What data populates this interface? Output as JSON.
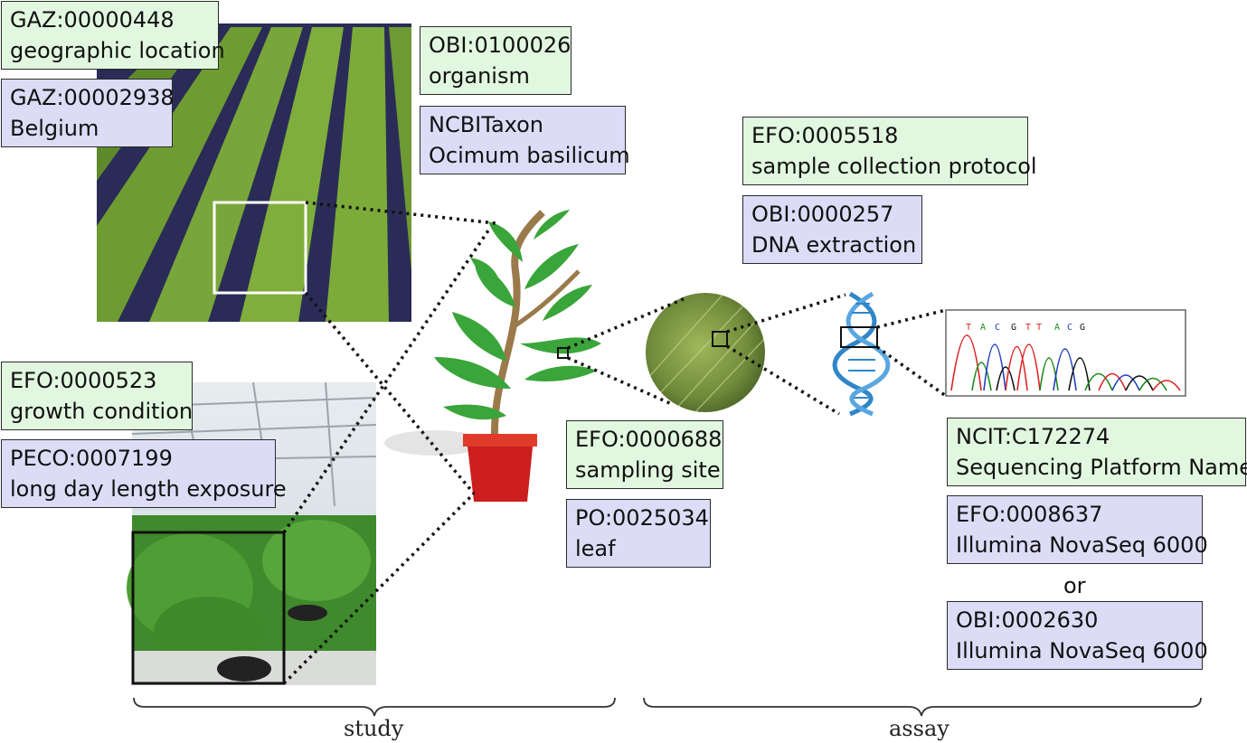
{
  "annotations": {
    "geo_location": {
      "id": "GAZ:00000448",
      "label": "geographic location"
    },
    "geo_value": {
      "id": "GAZ:00002938",
      "label": "Belgium"
    },
    "organism": {
      "id": "OBI:0100026",
      "label": "organism"
    },
    "organism_value": {
      "id": "NCBITaxon",
      "label": "Ocimum basilicum"
    },
    "growth": {
      "id": "EFO:0000523",
      "label": "growth condition"
    },
    "growth_value": {
      "id": "PECO:0007199",
      "label": "long day length exposure"
    },
    "sampling": {
      "id": "EFO:0000688",
      "label": "sampling site"
    },
    "sampling_value": {
      "id": "PO:0025034",
      "label": "leaf"
    },
    "protocol": {
      "id": "EFO:0005518",
      "label": "sample collection protocol"
    },
    "protocol_value": {
      "id": "OBI:0000257",
      "label": "DNA extraction"
    },
    "platform": {
      "id": "NCIT:C172274",
      "label": "Sequencing Platform Name"
    },
    "platform_v1": {
      "id": "EFO:0008637",
      "label": "Illumina NovaSeq 6000"
    },
    "platform_v2": {
      "id": "OBI:0002630",
      "label": "Illumina NovaSeq 6000"
    }
  },
  "or_text": "or",
  "sections": {
    "study": "study",
    "assay": "assay"
  },
  "sequence_letters": [
    "T",
    "A",
    "C",
    "G",
    "T",
    "T",
    "A",
    "C",
    "G"
  ],
  "colors": {
    "term_box": "#e1f7df",
    "value_box": "#dcdcf7",
    "leaf": "#3aa53a",
    "pot": "#cc1e1e",
    "dna": "#2f86c8"
  }
}
